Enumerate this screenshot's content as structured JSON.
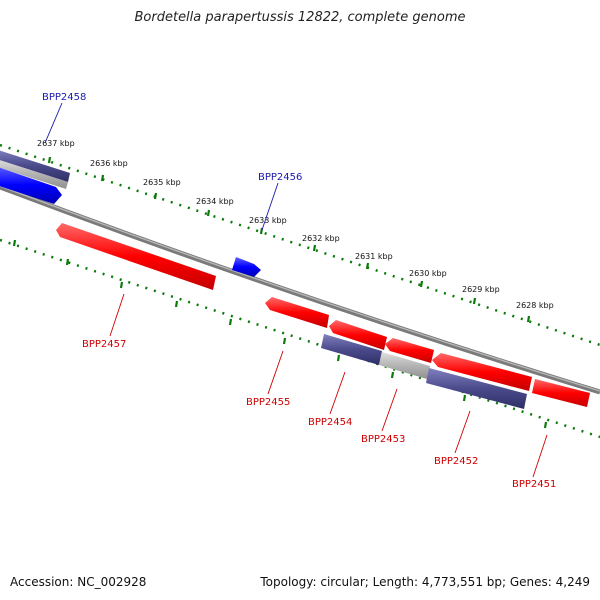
{
  "title": "Bordetella parapertussis 12822, complete genome",
  "accession": "Accession: NC_002928",
  "topology": "Topology: circular; Length: 4,773,551 bp; Genes: 4,249",
  "colors": {
    "forward_gene": "#1a1aff",
    "reverse_gene": "#ff1a1a",
    "forward_other": "#4b4b8c",
    "reverse_other": "#4b4b8c",
    "grey_feature": "#b4b4b4",
    "backbone": "#7f7f7f",
    "tick": "#0a7a0a",
    "label_forward": "#1a1aaa",
    "label_reverse": "#cc0000"
  },
  "kbp_ticks": [
    "2637 kbp",
    "2636 kbp",
    "2635 kbp",
    "2634 kbp",
    "2633 kbp",
    "2632 kbp",
    "2631 kbp",
    "2630 kbp",
    "2629 kbp",
    "2628 kbp"
  ],
  "genes": {
    "BPP2458": "BPP2458",
    "BPP2456": "BPP2456",
    "BPP2457": "BPP2457",
    "BPP2455": "BPP2455",
    "BPP2454": "BPP2454",
    "BPP2453": "BPP2453",
    "BPP2452": "BPP2452",
    "BPP2451": "BPP2451"
  }
}
